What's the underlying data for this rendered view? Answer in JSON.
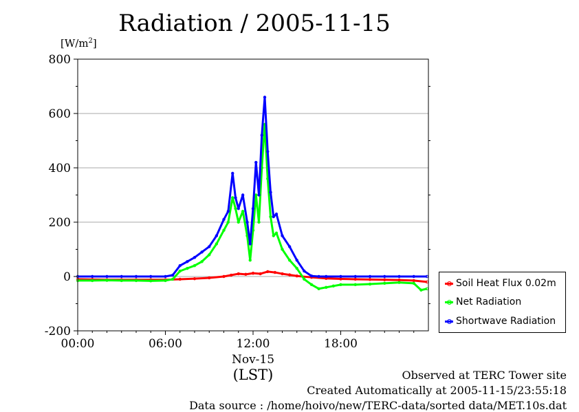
{
  "header": {
    "title": "Radiation / 2005-11-15",
    "unit_label": "[W/m",
    "unit_exp": "2",
    "unit_close": "]"
  },
  "footer": {
    "line1": "Observed at TERC Tower site",
    "line2": "Created Automatically at 2005-11-15/23:55:18",
    "line3": "Data source : /home/hoivo/new/TERC-data/sorted  data/MET.10s.dat"
  },
  "chart_data": {
    "type": "line",
    "title": "Radiation / 2005-11-15",
    "ylabel": "[W/m2]",
    "xlabel": "(LST)",
    "date_label": "Nov-15",
    "xlim": [
      0,
      24
    ],
    "ylim": [
      -200,
      800
    ],
    "x_ticks": [
      {
        "x": 0,
        "label": "00:00"
      },
      {
        "x": 6,
        "label": "06:00"
      },
      {
        "x": 12,
        "label": "12:00"
      },
      {
        "x": 18,
        "label": "18:00"
      }
    ],
    "y_ticks": [
      -200,
      0,
      200,
      400,
      600,
      800
    ],
    "grid": true,
    "legend_position": "right-outside",
    "series": [
      {
        "name": "Soil Heat Flux 0.02m",
        "color": "#ff0000",
        "x": [
          0,
          1,
          2,
          3,
          4,
          5,
          6,
          7,
          8,
          9,
          10,
          10.5,
          11,
          11.5,
          12,
          12.5,
          13,
          13.5,
          14,
          14.5,
          15,
          16,
          17,
          18,
          19,
          20,
          21,
          22,
          23,
          23.9
        ],
        "y": [
          -10,
          -11,
          -12,
          -12,
          -12,
          -12,
          -12,
          -10,
          -8,
          -5,
          0,
          5,
          10,
          8,
          12,
          10,
          18,
          15,
          10,
          6,
          2,
          -3,
          -7,
          -9,
          -10,
          -11,
          -12,
          -13,
          -15,
          -20
        ]
      },
      {
        "name": "Net Radiation",
        "color": "#00ff00",
        "x": [
          0,
          1,
          2,
          3,
          4,
          5,
          6,
          6.5,
          7,
          7.5,
          8,
          8.5,
          9,
          9.5,
          10,
          10.3,
          10.6,
          10.8,
          11,
          11.3,
          11.6,
          11.8,
          12,
          12.2,
          12.4,
          12.6,
          12.8,
          13,
          13.2,
          13.4,
          13.6,
          14,
          14.5,
          15,
          15.5,
          16,
          16.5,
          17,
          17.5,
          18,
          19,
          20,
          21,
          22,
          23,
          23.5,
          23.9
        ],
        "y": [
          -15,
          -15,
          -14,
          -15,
          -15,
          -16,
          -15,
          -10,
          20,
          30,
          40,
          55,
          80,
          120,
          170,
          200,
          290,
          250,
          200,
          240,
          150,
          60,
          170,
          300,
          200,
          400,
          560,
          360,
          220,
          150,
          160,
          100,
          60,
          30,
          -10,
          -30,
          -45,
          -40,
          -35,
          -30,
          -30,
          -28,
          -25,
          -22,
          -25,
          -50,
          -45
        ]
      },
      {
        "name": "Shortwave Radiation",
        "color": "#0000ff",
        "x": [
          0,
          1,
          2,
          3,
          4,
          5,
          6,
          6.5,
          7,
          7.5,
          8,
          8.5,
          9,
          9.5,
          10,
          10.3,
          10.6,
          10.8,
          11,
          11.3,
          11.6,
          11.8,
          12,
          12.2,
          12.4,
          12.6,
          12.8,
          13,
          13.2,
          13.4,
          13.6,
          14,
          14.5,
          15,
          15.5,
          16,
          16.5,
          17,
          18,
          19,
          20,
          21,
          22,
          23,
          23.9
        ],
        "y": [
          0,
          0,
          0,
          0,
          0,
          0,
          0,
          5,
          40,
          55,
          70,
          90,
          110,
          150,
          210,
          240,
          380,
          290,
          250,
          300,
          200,
          120,
          250,
          420,
          300,
          520,
          660,
          460,
          310,
          220,
          230,
          150,
          110,
          60,
          20,
          2,
          0,
          0,
          0,
          0,
          0,
          0,
          0,
          0,
          0
        ]
      }
    ]
  }
}
